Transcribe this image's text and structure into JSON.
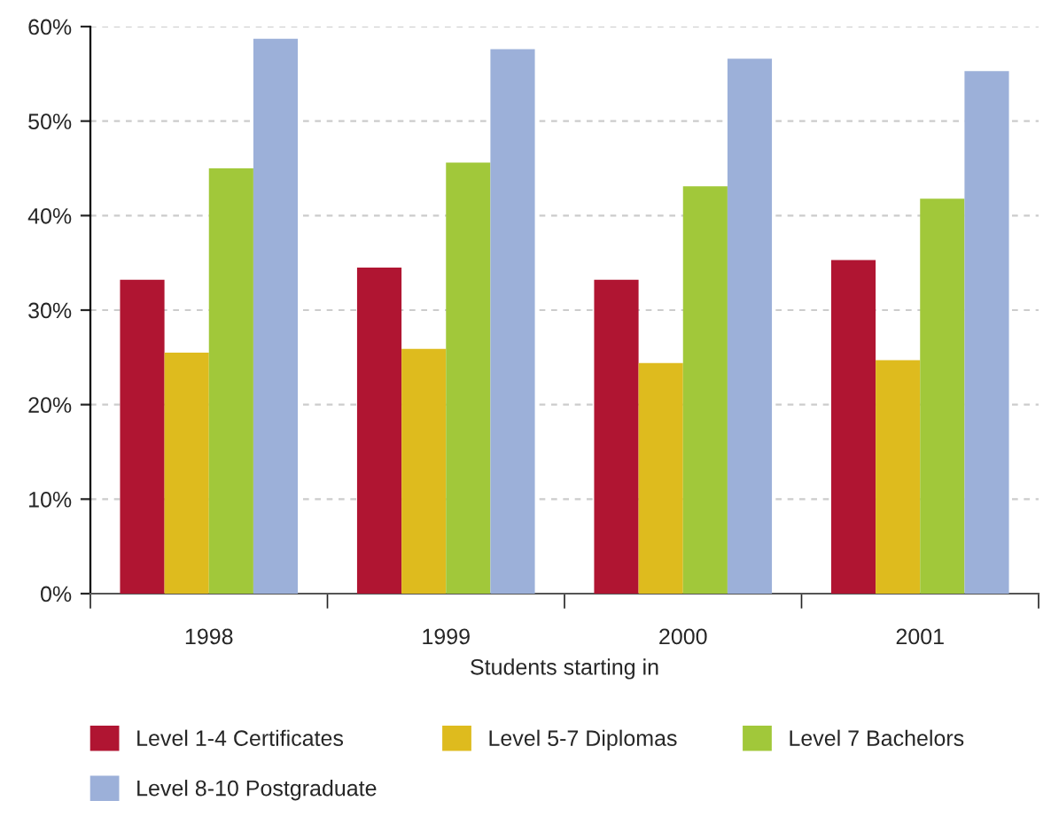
{
  "chart_data": {
    "type": "bar",
    "xlabel": "Students starting in",
    "categories": [
      "1998",
      "1999",
      "2000",
      "2001"
    ],
    "series": [
      {
        "name": "Level 1-4 Certificates",
        "color": "#b01532",
        "values": [
          33.2,
          34.5,
          33.2,
          35.3
        ]
      },
      {
        "name": "Level 5-7 Diplomas",
        "color": "#debb1e",
        "values": [
          25.5,
          25.9,
          24.4,
          24.7
        ]
      },
      {
        "name": "Level 7 Bachelors",
        "color": "#a1c83a",
        "values": [
          45.0,
          45.6,
          43.1,
          41.8
        ]
      },
      {
        "name": "Level 8-10 Postgraduate",
        "color": "#9cb0d9",
        "values": [
          58.7,
          57.6,
          56.6,
          55.3
        ]
      }
    ],
    "ylim": [
      0,
      60
    ],
    "yticks": [
      {
        "value": 0,
        "label": "0%"
      },
      {
        "value": 10,
        "label": "10%"
      },
      {
        "value": 20,
        "label": "20%"
      },
      {
        "value": 30,
        "label": "30%"
      },
      {
        "value": 40,
        "label": "40%"
      },
      {
        "value": 50,
        "label": "50%"
      },
      {
        "value": 60,
        "label": "60%"
      }
    ],
    "grid": "y",
    "legend": "bottom"
  }
}
